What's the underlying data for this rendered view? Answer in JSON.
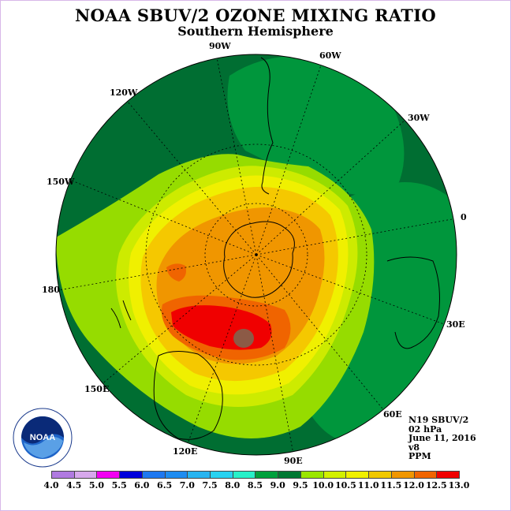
{
  "title": "NOAA SBUV/2 OZONE MIXING RATIO",
  "subtitle": "Southern Hemisphere",
  "longitude_labels": {
    "lon_90w": "90W",
    "lon_60w": "60W",
    "lon_30w": "30W",
    "lon_0": "0",
    "lon_30e": "30E",
    "lon_60e": "60E",
    "lon_90e": "90E",
    "lon_120e": "120E",
    "lon_150e": "150E",
    "lon_180": "180",
    "lon_150w": "150W",
    "lon_120w": "120W"
  },
  "info": {
    "satellite": "N19 SBUV/2",
    "level": "02 hPa",
    "date": "June 11, 2016",
    "version": "v8",
    "units": "PPM"
  },
  "logo_text": "NOAA",
  "colorbar": {
    "ticks": [
      "4.0",
      "4.5",
      "5.0",
      "5.5",
      "6.0",
      "6.5",
      "7.0",
      "7.5",
      "8.0",
      "8.5",
      "9.0",
      "9.5",
      "10.0",
      "10.5",
      "11.0",
      "11.5",
      "12.0",
      "12.5",
      "13.0"
    ],
    "colors": [
      "#b07ae0",
      "#d7a8ec",
      "#f200f2",
      "#0000dc",
      "#1e78f0",
      "#1e8cf0",
      "#28b4f0",
      "#28d2f0",
      "#28f0c8",
      "#00a03c",
      "#007832",
      "#9ae600",
      "#d2f000",
      "#f0f000",
      "#f0c800",
      "#f09600",
      "#f06400",
      "#f00000",
      "#96503c"
    ]
  },
  "map_colors": {
    "ocean_dark": "#006e32",
    "green": "#00963c",
    "lime": "#96dc00",
    "yellow_green": "#cdeb00",
    "yellow": "#f0f000",
    "gold": "#f5c800",
    "orange": "#f09600",
    "red_orange": "#f06400",
    "red": "#f00000",
    "brown": "#8c5a46"
  }
}
